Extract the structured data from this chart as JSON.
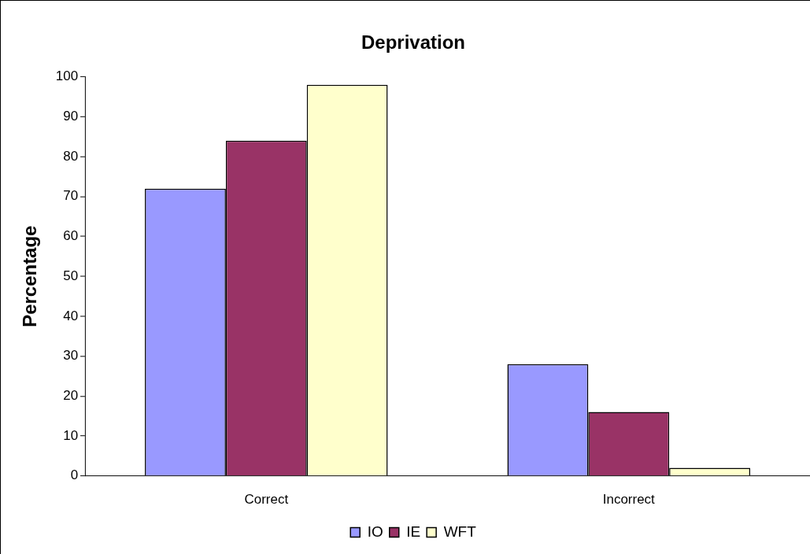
{
  "chart_data": {
    "type": "bar",
    "title": "Deprivation",
    "ylabel": "Percentage",
    "categories": [
      "Correct",
      "Incorrect"
    ],
    "series": [
      {
        "name": "IO",
        "color": "#9999ff",
        "values": [
          72,
          28
        ]
      },
      {
        "name": "IE",
        "color": "#993366",
        "values": [
          84,
          16
        ]
      },
      {
        "name": "WFT",
        "color": "#ffffcc",
        "values": [
          98,
          2
        ]
      }
    ],
    "ylim": [
      0,
      100
    ],
    "yticks": [
      0,
      10,
      20,
      30,
      40,
      50,
      60,
      70,
      80,
      90,
      100
    ],
    "grid": false,
    "legend": "bottom"
  }
}
